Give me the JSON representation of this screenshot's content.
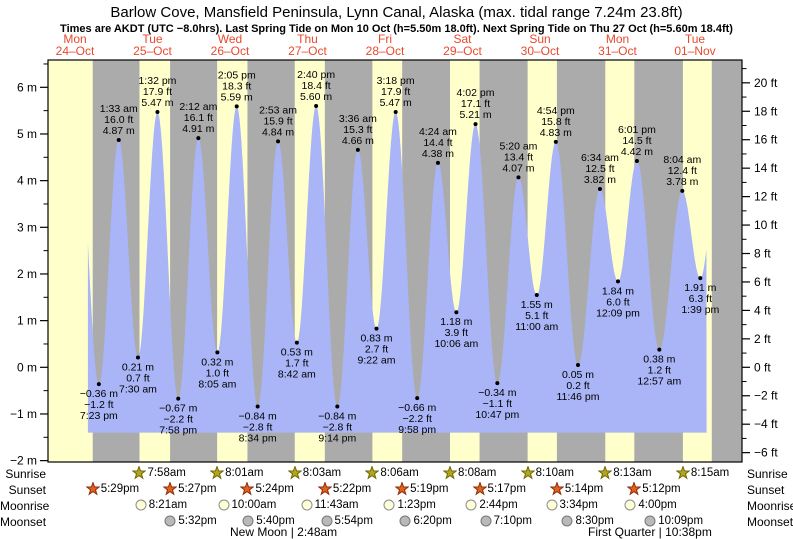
{
  "header": {
    "title": "Barlow Cove, Mansfield Peninsula, Lynn Canal, Alaska (max. tidal range 7.24m 23.8ft)",
    "subtitle": "Times are AKDT (UTC −8.0hrs). Last Spring Tide on Mon 10 Oct (h=5.50m 18.0ft). Next Spring Tide on Thu 27 Oct (h=5.60m 18.4ft)"
  },
  "days": [
    {
      "weekday": "Mon",
      "date": "24–Oct"
    },
    {
      "weekday": "Tue",
      "date": "25–Oct"
    },
    {
      "weekday": "Wed",
      "date": "26–Oct"
    },
    {
      "weekday": "Thu",
      "date": "27–Oct"
    },
    {
      "weekday": "Fri",
      "date": "28–Oct"
    },
    {
      "weekday": "Sat",
      "date": "29–Oct"
    },
    {
      "weekday": "Sun",
      "date": "30–Oct"
    },
    {
      "weekday": "Mon",
      "date": "31–Oct"
    },
    {
      "weekday": "Tue",
      "date": "01–Nov"
    }
  ],
  "chart_data": {
    "type": "area",
    "title": "Tide height curve",
    "ylabel_left": "m",
    "ylabel_right": "ft",
    "y_axis_left_ticks": [
      6,
      5,
      4,
      3,
      2,
      1,
      0,
      -1,
      -2
    ],
    "y_axis_right_ticks": [
      20,
      18,
      16,
      14,
      12,
      10,
      8,
      6,
      4,
      2,
      0,
      -2,
      -4,
      -6
    ],
    "fill_base_m": -1.4,
    "colors": {
      "day_band": "#ffffcc",
      "night_band": "#ababab",
      "water": "#a9b5f6",
      "date_text": "#e8492c",
      "sunrise_star": "#b5a41e",
      "sunset_star": "#e55f1e",
      "moonrise_fill": "#ffffd8",
      "moonset_fill": "#b9b9b9"
    },
    "extremes": [
      {
        "day": 0,
        "time": "7:23 pm",
        "type": "low",
        "m": -0.36,
        "ft": -1.2
      },
      {
        "day": 1,
        "time": "1:33 am",
        "type": "high",
        "m": 4.87,
        "ft": 16.0
      },
      {
        "day": 1,
        "time": "7:30 am",
        "type": "low",
        "m": 0.21,
        "ft": 0.7
      },
      {
        "day": 1,
        "time": "1:32 pm",
        "type": "high",
        "m": 5.47,
        "ft": 17.9
      },
      {
        "day": 1,
        "time": "7:58 pm",
        "type": "low",
        "m": -0.67,
        "ft": -2.2
      },
      {
        "day": 2,
        "time": "2:12 am",
        "type": "high",
        "m": 4.91,
        "ft": 16.1
      },
      {
        "day": 2,
        "time": "8:05 am",
        "type": "low",
        "m": 0.32,
        "ft": 1.0
      },
      {
        "day": 2,
        "time": "2:05 pm",
        "type": "high",
        "m": 5.59,
        "ft": 18.3
      },
      {
        "day": 2,
        "time": "8:34 pm",
        "type": "low",
        "m": -0.84,
        "ft": -2.8
      },
      {
        "day": 3,
        "time": "2:53 am",
        "type": "high",
        "m": 4.84,
        "ft": 15.9
      },
      {
        "day": 3,
        "time": "8:42 am",
        "type": "low",
        "m": 0.53,
        "ft": 1.7
      },
      {
        "day": 3,
        "time": "2:40 pm",
        "type": "high",
        "m": 5.6,
        "ft": 18.4
      },
      {
        "day": 3,
        "time": "9:14 pm",
        "type": "low",
        "m": -0.84,
        "ft": -2.8
      },
      {
        "day": 4,
        "time": "3:36 am",
        "type": "high",
        "m": 4.66,
        "ft": 15.3
      },
      {
        "day": 4,
        "time": "9:22 am",
        "type": "low",
        "m": 0.83,
        "ft": 2.7
      },
      {
        "day": 4,
        "time": "3:18 pm",
        "type": "high",
        "m": 5.47,
        "ft": 17.9
      },
      {
        "day": 4,
        "time": "9:58 pm",
        "type": "low",
        "m": -0.66,
        "ft": -2.2
      },
      {
        "day": 5,
        "time": "4:24 am",
        "type": "high",
        "m": 4.38,
        "ft": 14.4
      },
      {
        "day": 5,
        "time": "10:06 am",
        "type": "low",
        "m": 1.18,
        "ft": 3.9
      },
      {
        "day": 5,
        "time": "4:02 pm",
        "type": "high",
        "m": 5.21,
        "ft": 17.1
      },
      {
        "day": 5,
        "time": "10:47 pm",
        "type": "low",
        "m": -0.34,
        "ft": -1.1
      },
      {
        "day": 6,
        "time": "5:20 am",
        "type": "high",
        "m": 4.07,
        "ft": 13.4
      },
      {
        "day": 6,
        "time": "11:00 am",
        "type": "low",
        "m": 1.55,
        "ft": 5.1
      },
      {
        "day": 6,
        "time": "4:54 pm",
        "type": "high",
        "m": 4.83,
        "ft": 15.8
      },
      {
        "day": 6,
        "time": "11:46 pm",
        "type": "low",
        "m": 0.05,
        "ft": 0.2
      },
      {
        "day": 7,
        "time": "6:34 am",
        "type": "high",
        "m": 3.82,
        "ft": 12.5
      },
      {
        "day": 7,
        "time": "12:09 pm",
        "type": "low",
        "m": 1.84,
        "ft": 6.0
      },
      {
        "day": 7,
        "time": "6:01 pm",
        "type": "high",
        "m": 4.42,
        "ft": 14.5
      },
      {
        "day": 8,
        "time": "12:57 am",
        "type": "low",
        "m": 0.38,
        "ft": 1.2
      },
      {
        "day": 8,
        "time": "8:04 am",
        "type": "high",
        "m": 3.78,
        "ft": 12.4
      },
      {
        "day": 8,
        "time": "1:39 pm",
        "type": "low",
        "m": 1.91,
        "ft": 6.3
      }
    ]
  },
  "astro": {
    "row_labels": [
      "Sunrise",
      "Sunset",
      "Moonrise",
      "Moonset"
    ],
    "sunrise": [
      {
        "day": 1,
        "time": "7:58am"
      },
      {
        "day": 2,
        "time": "8:01am"
      },
      {
        "day": 3,
        "time": "8:03am"
      },
      {
        "day": 4,
        "time": "8:06am"
      },
      {
        "day": 5,
        "time": "8:08am"
      },
      {
        "day": 6,
        "time": "8:10am"
      },
      {
        "day": 7,
        "time": "8:13am"
      },
      {
        "day": 8,
        "time": "8:15am"
      }
    ],
    "sunset": [
      {
        "day": 0,
        "time": "5:29pm"
      },
      {
        "day": 1,
        "time": "5:27pm"
      },
      {
        "day": 2,
        "time": "5:24pm"
      },
      {
        "day": 3,
        "time": "5:22pm"
      },
      {
        "day": 4,
        "time": "5:19pm"
      },
      {
        "day": 5,
        "time": "5:17pm"
      },
      {
        "day": 6,
        "time": "5:14pm"
      },
      {
        "day": 7,
        "time": "5:12pm"
      }
    ],
    "moonrise": [
      {
        "day": 1,
        "time": "8:21am"
      },
      {
        "day": 2,
        "time": "10:00am"
      },
      {
        "day": 3,
        "time": "11:43am"
      },
      {
        "day": 4,
        "time": "1:23pm"
      },
      {
        "day": 5,
        "time": "2:44pm"
      },
      {
        "day": 6,
        "time": "3:34pm"
      },
      {
        "day": 7,
        "time": "4:00pm"
      }
    ],
    "moonset": [
      {
        "day": 1,
        "time": "5:32pm"
      },
      {
        "day": 2,
        "time": "5:40pm"
      },
      {
        "day": 3,
        "time": "5:54pm"
      },
      {
        "day": 4,
        "time": "6:20pm"
      },
      {
        "day": 5,
        "time": "7:10pm"
      },
      {
        "day": 6,
        "time": "8:30pm"
      },
      {
        "day": 7,
        "time": "10:09pm"
      }
    ],
    "phases": [
      {
        "label": "New Moon | 2:48am"
      },
      {
        "label": "First Quarter | 10:38pm"
      }
    ]
  }
}
